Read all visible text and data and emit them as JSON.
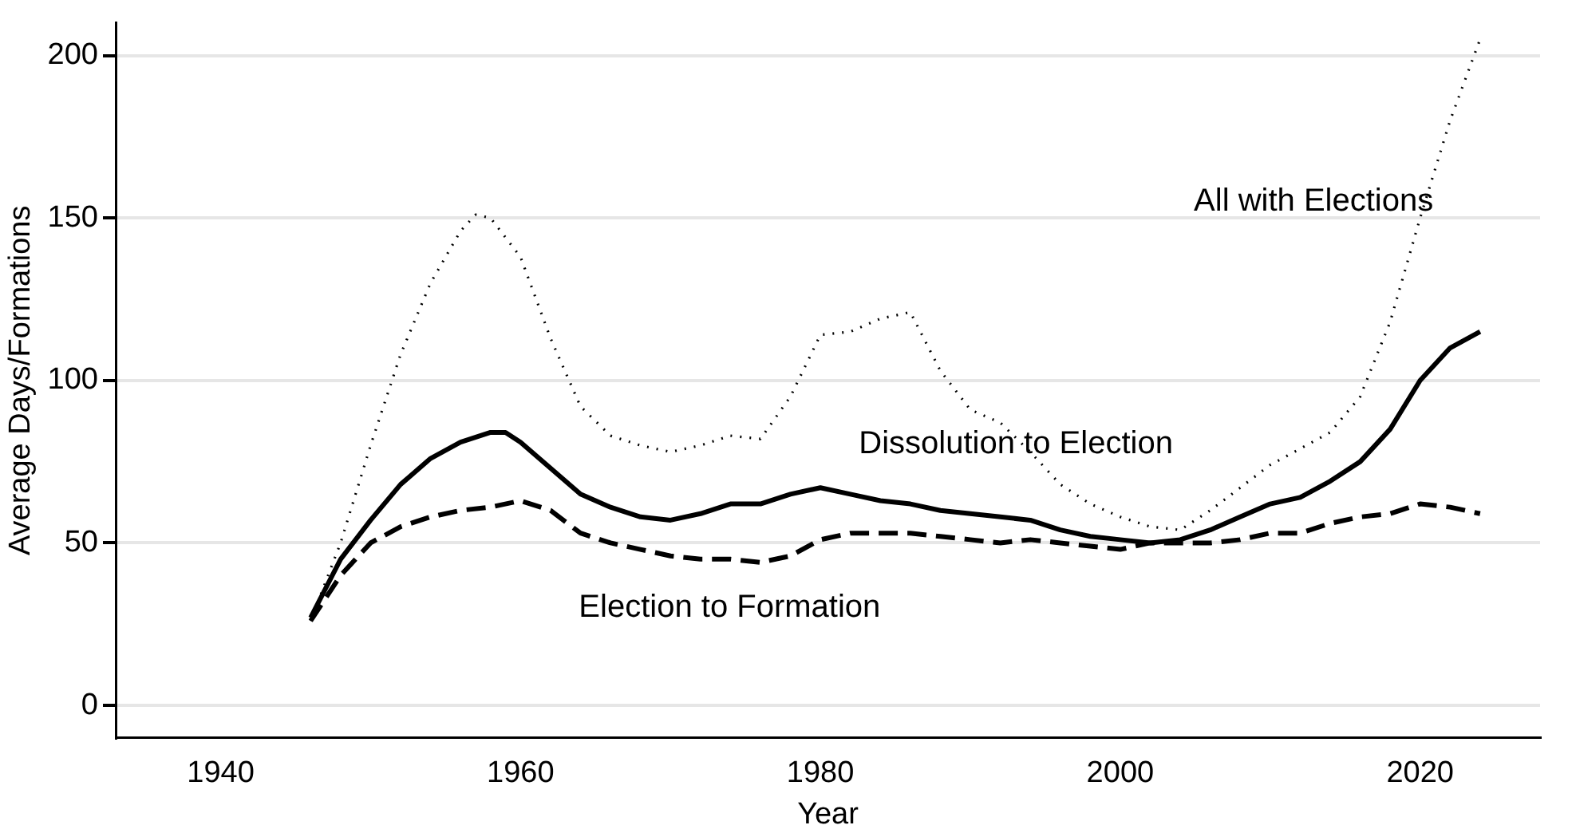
{
  "chart_data": {
    "type": "line",
    "xlabel": "Year",
    "ylabel": "Average Days/Formations",
    "xlim": [
      1933,
      2028
    ],
    "xticks": [
      1940,
      1960,
      1980,
      2000,
      2020
    ],
    "ylim": [
      -10,
      210
    ],
    "yticks": [
      0,
      50,
      100,
      150,
      200
    ],
    "grid": "y",
    "legend": false,
    "marker": "none",
    "series": [
      {
        "color": "#000000",
        "line_style": "dotted",
        "x": [
          1946,
          1948,
          1950,
          1952,
          1954,
          1956,
          1957,
          1958,
          1960,
          1962,
          1964,
          1966,
          1968,
          1970,
          1972,
          1974,
          1976,
          1978,
          1980,
          1982,
          1984,
          1986,
          1988,
          1990,
          1992,
          1994,
          1996,
          1998,
          2000,
          2002,
          2004,
          2006,
          2008,
          2010,
          2012,
          2014,
          2016,
          2018,
          2020,
          2022,
          2024
        ],
        "values": [
          26,
          50,
          80,
          108,
          130,
          146,
          151,
          150,
          138,
          113,
          92,
          83,
          80,
          78,
          80,
          83,
          82,
          95,
          114,
          115,
          119,
          121,
          103,
          91,
          87,
          78,
          68,
          62,
          58,
          55,
          54,
          60,
          67,
          74,
          79,
          84,
          95,
          118,
          150,
          180,
          205
        ]
      },
      {
        "color": "#000000",
        "line_style": "solid",
        "x": [
          1946,
          1948,
          1950,
          1952,
          1954,
          1956,
          1958,
          1959,
          1960,
          1962,
          1964,
          1966,
          1968,
          1970,
          1972,
          1974,
          1976,
          1978,
          1980,
          1982,
          1984,
          1986,
          1988,
          1990,
          1992,
          1994,
          1996,
          1998,
          2000,
          2002,
          2004,
          2006,
          2008,
          2010,
          2012,
          2014,
          2016,
          2018,
          2020,
          2022,
          2024
        ],
        "values": [
          27,
          45,
          57,
          68,
          76,
          81,
          84,
          84,
          81,
          73,
          65,
          61,
          58,
          57,
          59,
          62,
          62,
          65,
          67,
          65,
          63,
          62,
          60,
          59,
          58,
          57,
          54,
          52,
          51,
          50,
          51,
          54,
          58,
          62,
          64,
          69,
          75,
          85,
          100,
          110,
          115
        ]
      },
      {
        "color": "#000000",
        "line_style": "dashed",
        "x": [
          1946,
          1948,
          1950,
          1952,
          1954,
          1956,
          1958,
          1960,
          1962,
          1964,
          1966,
          1968,
          1970,
          1972,
          1974,
          1976,
          1978,
          1980,
          1982,
          1984,
          1986,
          1988,
          1990,
          1992,
          1994,
          1996,
          1998,
          2000,
          2002,
          2004,
          2006,
          2008,
          2010,
          2012,
          2014,
          2016,
          2018,
          2020,
          2022,
          2024
        ],
        "values": [
          26,
          40,
          50,
          55,
          58,
          60,
          61,
          63,
          60,
          53,
          50,
          48,
          46,
          45,
          45,
          44,
          46,
          51,
          53,
          53,
          53,
          52,
          51,
          50,
          51,
          50,
          49,
          48,
          50,
          50,
          50,
          51,
          53,
          53,
          56,
          58,
          59,
          62,
          61,
          59
        ]
      }
    ],
    "annotations": [
      "All with Elections",
      "Dissolution to Election",
      "Election to Formation"
    ]
  }
}
